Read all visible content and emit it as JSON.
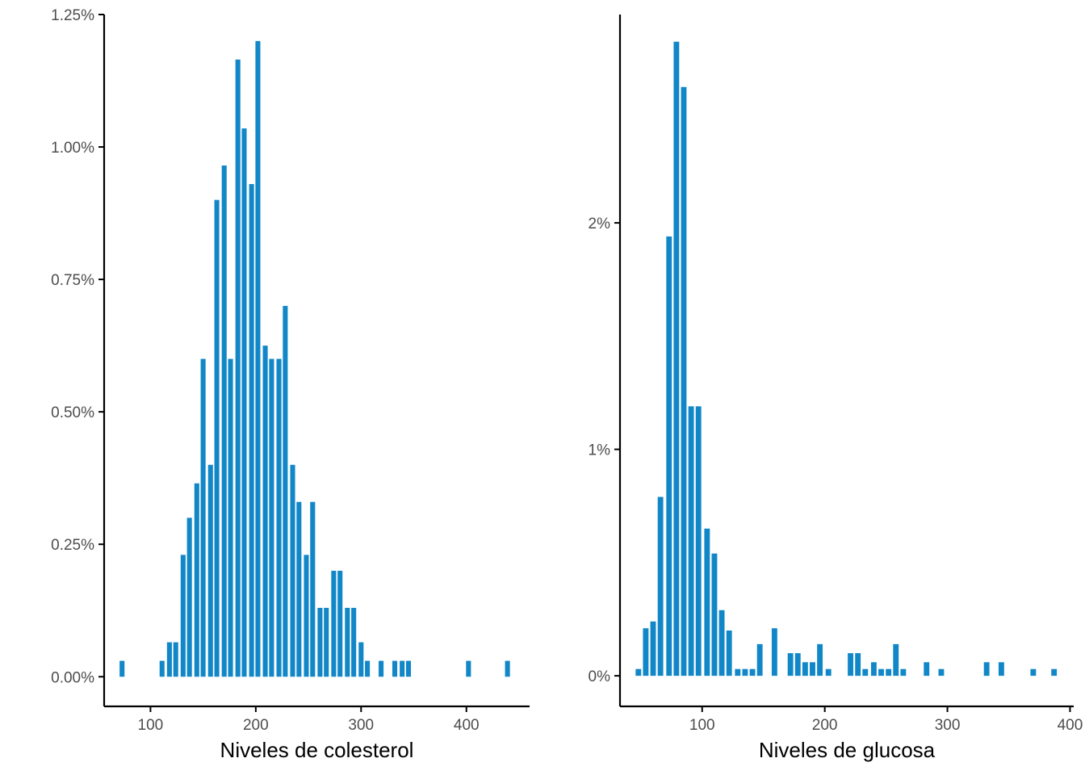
{
  "chart_data": [
    {
      "type": "bar",
      "title": "",
      "xlabel": "Niveles de colesterol",
      "ylabel": "",
      "bar_color": "#1287C7",
      "grid": false,
      "xlim": [
        56,
        460
      ],
      "ylim": [
        -0.056,
        1.25
      ],
      "xticks": [
        100,
        200,
        300,
        400
      ],
      "xtick_labels": [
        "100",
        "200",
        "300",
        "400"
      ],
      "yticks": [
        0,
        0.25,
        0.5,
        0.75,
        1.0,
        1.25
      ],
      "ytick_labels": [
        "0.00%",
        "0.25%",
        "0.50%",
        "0.75%",
        "1.00%",
        "1.25%"
      ],
      "x": [
        73,
        111,
        118,
        124,
        131,
        137,
        144,
        150,
        157,
        163,
        170,
        176,
        183,
        189,
        196,
        202,
        209,
        215,
        222,
        228,
        235,
        241,
        248,
        254,
        261,
        267,
        274,
        280,
        287,
        293,
        300,
        306,
        319,
        332,
        339,
        345,
        402,
        439
      ],
      "values": [
        0.03,
        0.03,
        0.065,
        0.065,
        0.23,
        0.3,
        0.365,
        0.6,
        0.4,
        0.9,
        0.965,
        0.6,
        1.165,
        1.035,
        0.93,
        1.2,
        0.625,
        0.6,
        0.6,
        0.7,
        0.4,
        0.33,
        0.23,
        0.33,
        0.13,
        0.13,
        0.2,
        0.2,
        0.13,
        0.13,
        0.065,
        0.03,
        0.03,
        0.03,
        0.03,
        0.03,
        0.03,
        0.03
      ],
      "bin_width": 6.5
    },
    {
      "type": "bar",
      "title": "",
      "xlabel": "Niveles de glucosa",
      "ylabel": "",
      "bar_color": "#1287C7",
      "grid": false,
      "xlim": [
        33,
        403
      ],
      "ylim": [
        -0.135,
        2.92
      ],
      "xticks": [
        100,
        200,
        300,
        400
      ],
      "xtick_labels": [
        "100",
        "200",
        "300",
        "400"
      ],
      "yticks": [
        0,
        1,
        2
      ],
      "ytick_labels": [
        "0%",
        "1%",
        "2%"
      ],
      "x": [
        48,
        54,
        60,
        66,
        73,
        79,
        85,
        91,
        97,
        104,
        110,
        116,
        122,
        129,
        135,
        141,
        147,
        159,
        172,
        178,
        184,
        190,
        196,
        203,
        221,
        227,
        233,
        240,
        246,
        252,
        258,
        264,
        283,
        295,
        332,
        344,
        370,
        387
      ],
      "values": [
        0.03,
        0.21,
        0.24,
        0.79,
        1.94,
        2.8,
        2.6,
        1.19,
        1.19,
        0.65,
        0.54,
        0.29,
        0.2,
        0.03,
        0.03,
        0.03,
        0.14,
        0.21,
        0.1,
        0.1,
        0.06,
        0.06,
        0.14,
        0.03,
        0.1,
        0.1,
        0.03,
        0.06,
        0.03,
        0.03,
        0.14,
        0.03,
        0.06,
        0.03,
        0.06,
        0.06,
        0.03,
        0.03
      ],
      "bin_width": 6.1
    }
  ]
}
